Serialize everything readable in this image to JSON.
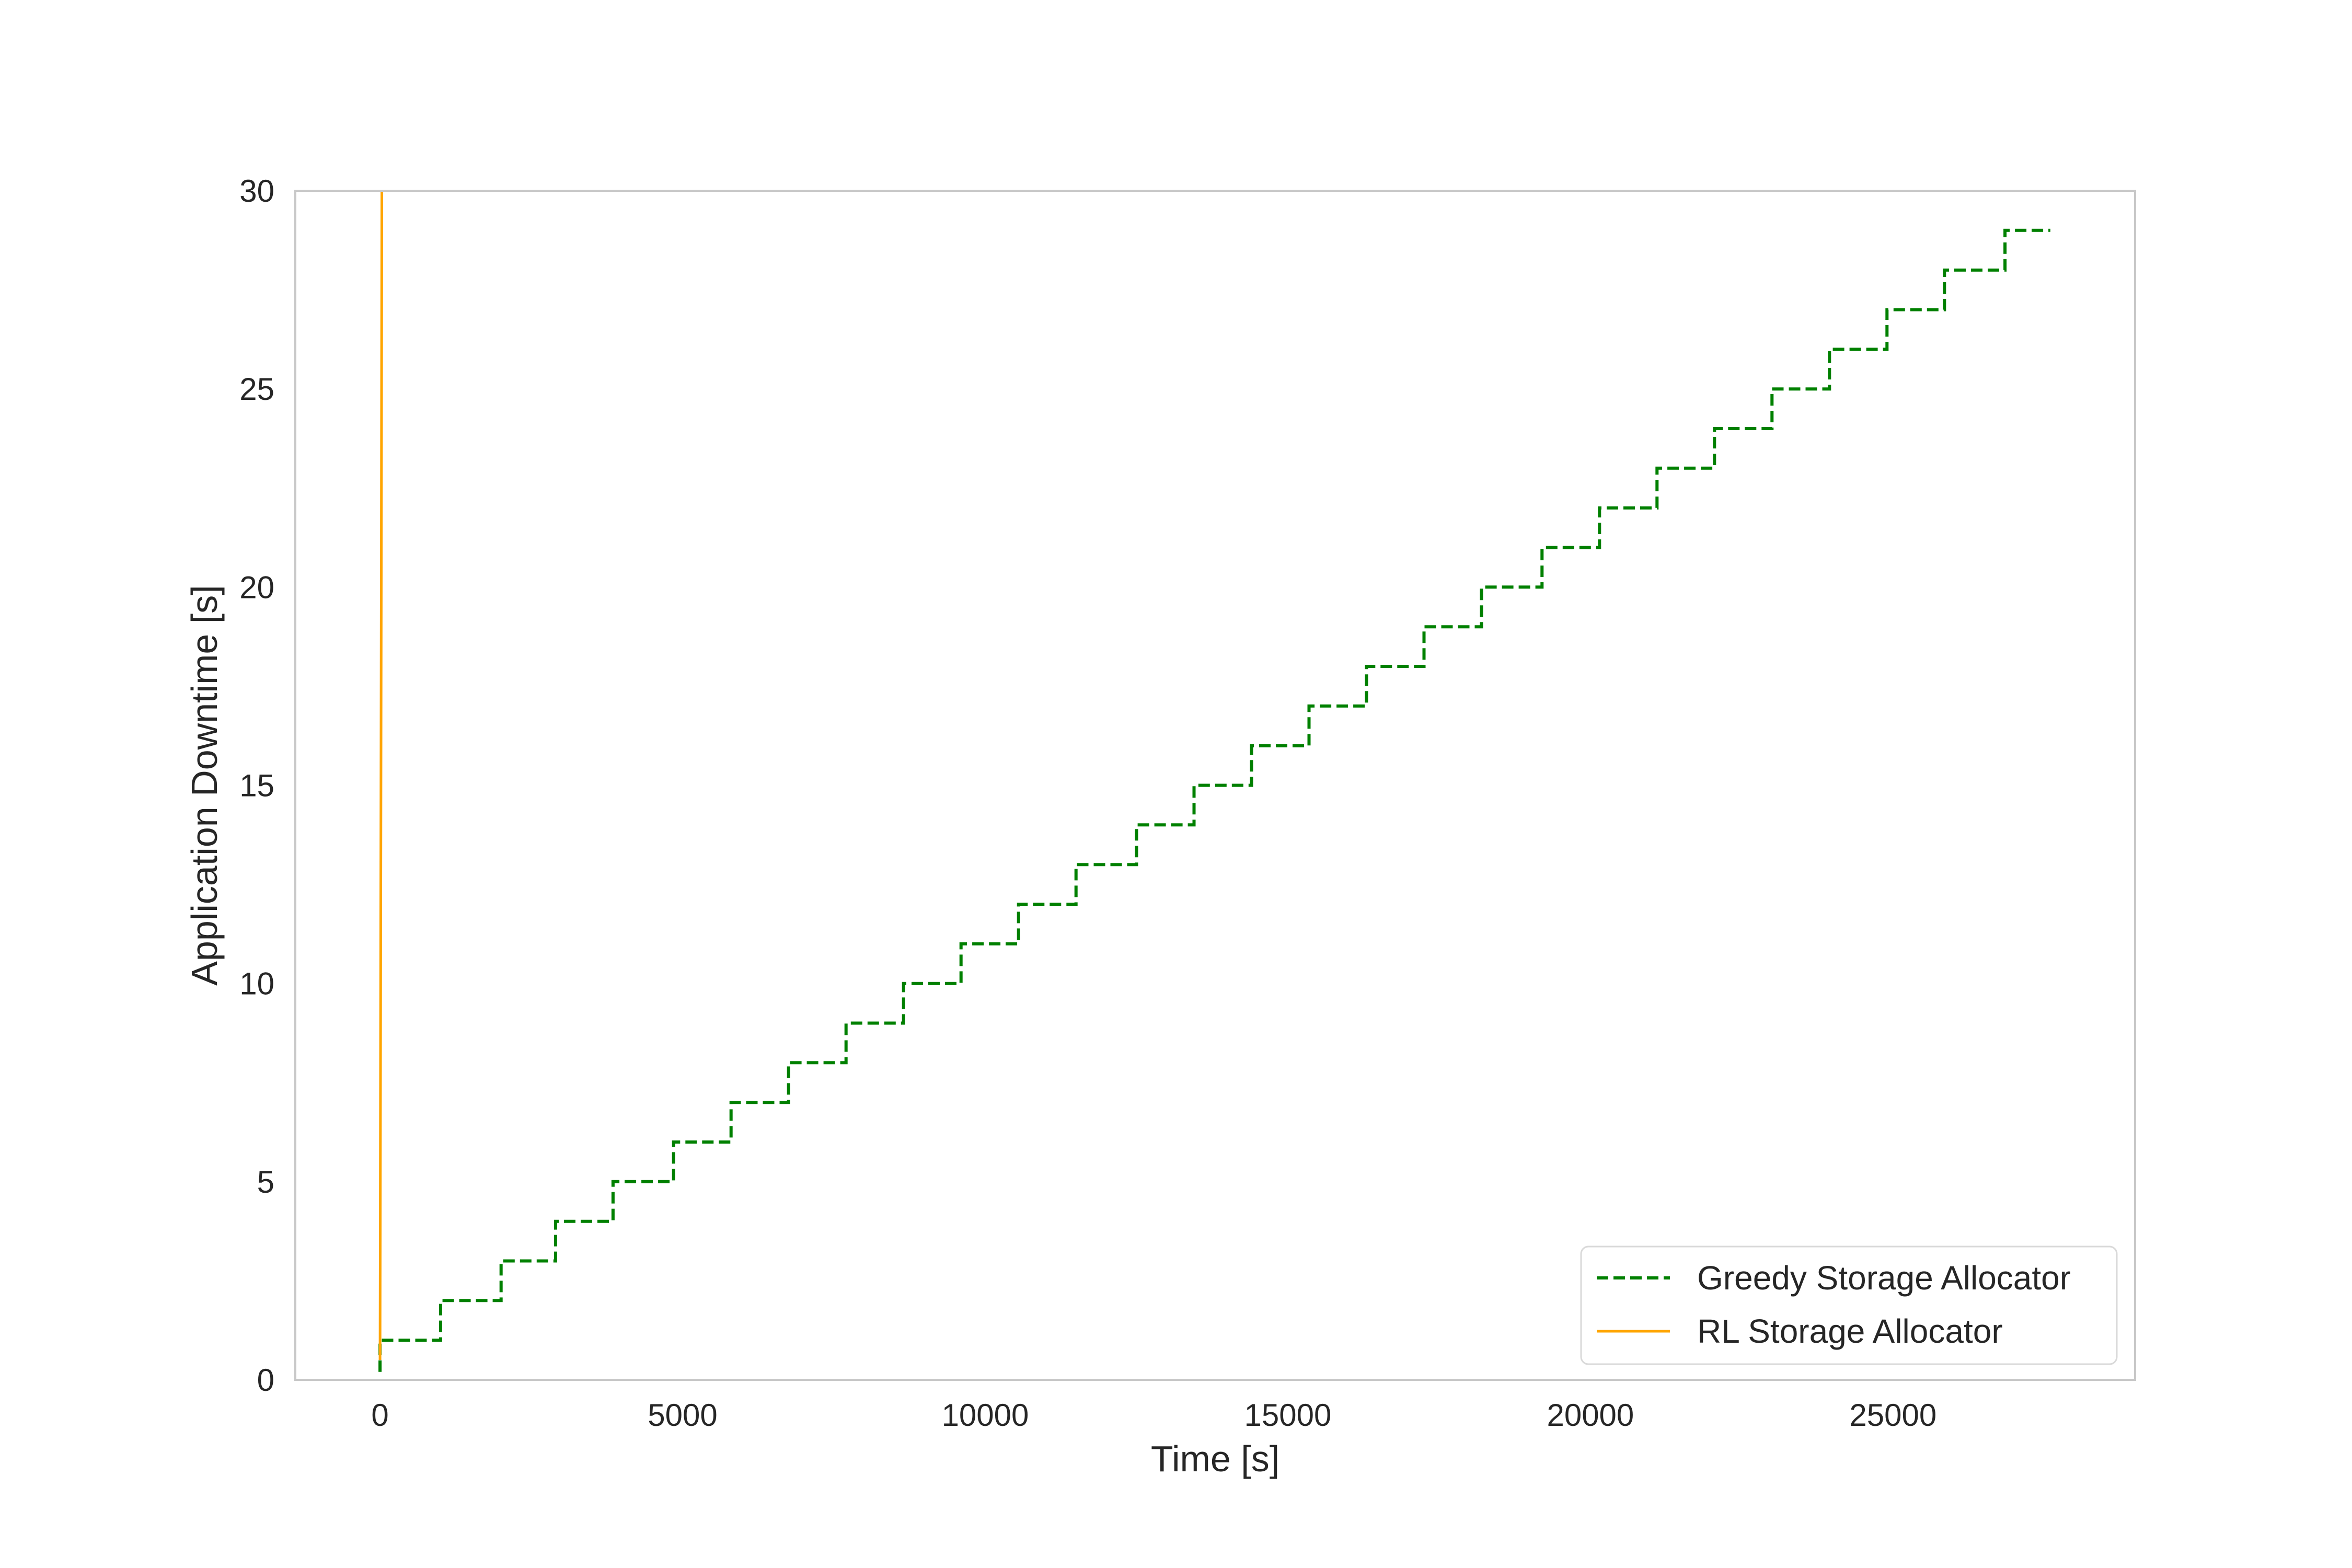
{
  "chart_data": {
    "type": "line",
    "title": "",
    "xlabel": "Time [s]",
    "ylabel": "Application Downtime [s]",
    "xlim": [
      -1400,
      29000
    ],
    "ylim": [
      0,
      30
    ],
    "xticks": [
      0,
      5000,
      10000,
      15000,
      20000,
      25000
    ],
    "xtick_labels": [
      "0",
      "5000",
      "10000",
      "15000",
      "20000",
      "25000"
    ],
    "yticks": [
      0,
      5,
      10,
      15,
      20,
      25,
      30
    ],
    "ytick_labels": [
      "0",
      "5",
      "10",
      "15",
      "20",
      "25",
      "30"
    ],
    "grid": false,
    "legend_position": "lower-right",
    "series": [
      {
        "name": "Greedy Storage Allocator",
        "color": "#008000",
        "style": "dashed",
        "step": true,
        "x": [
          0,
          0,
          1000,
          1000,
          2000,
          2000,
          2900,
          2900,
          3850,
          3850,
          4850,
          4850,
          5800,
          5800,
          6750,
          6750,
          7700,
          7700,
          8650,
          8650,
          9600,
          9600,
          10550,
          10550,
          11500,
          11500,
          12500,
          12500,
          13450,
          13450,
          14400,
          14400,
          15350,
          15350,
          16300,
          16300,
          17250,
          17250,
          18200,
          18200,
          19200,
          19200,
          20150,
          20150,
          21100,
          21100,
          22050,
          22050,
          23000,
          23000,
          23950,
          23950,
          24900,
          24900,
          25850,
          25850,
          26850,
          26850,
          27600
        ],
        "y": [
          0.2,
          1,
          1,
          2,
          2,
          3,
          3,
          4,
          4,
          5,
          5,
          6,
          6,
          7,
          7,
          8,
          8,
          9,
          9,
          10,
          10,
          11,
          11,
          12,
          12,
          13,
          13,
          14,
          14,
          15,
          15,
          16,
          16,
          17,
          17,
          18,
          18,
          19,
          19,
          20,
          20,
          21,
          21,
          22,
          22,
          23,
          23,
          24,
          24,
          25,
          25,
          26,
          26,
          27,
          27,
          28,
          28,
          29,
          29
        ]
      },
      {
        "name": "RL Storage Allocator",
        "color": "#FFA500",
        "style": "solid",
        "step": false,
        "x": [
          0,
          10,
          30
        ],
        "y": [
          0.5,
          10,
          30
        ]
      }
    ]
  },
  "colors": {
    "axes_edge": "#c8c8c8",
    "text": "#262626",
    "legend_edge": "#d9d9d9"
  }
}
